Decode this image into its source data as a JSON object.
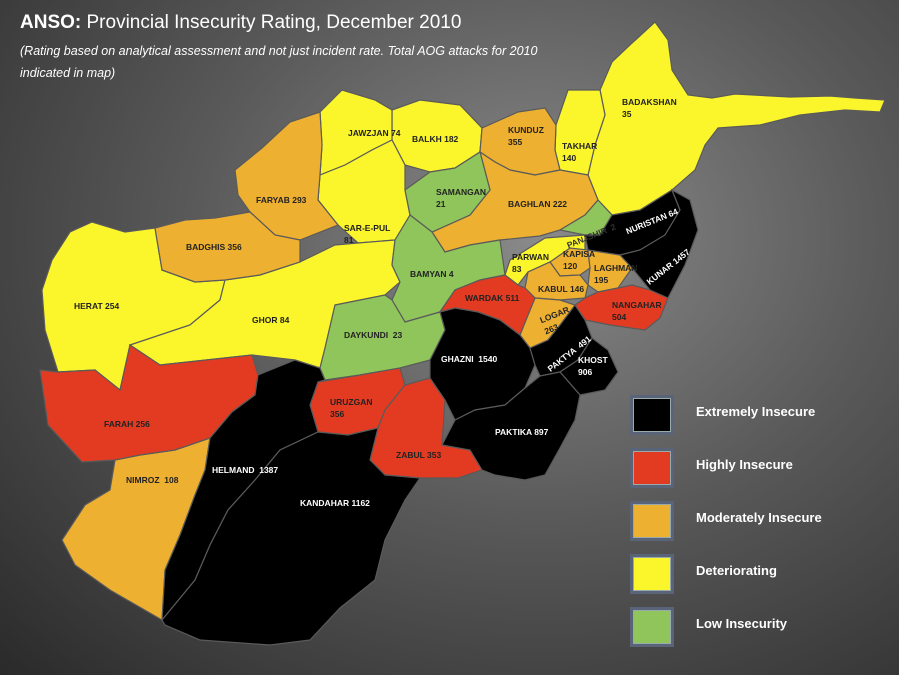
{
  "title_bold": "ANSO:",
  "title_rest": " Provincial Insecurity Rating, December 2010",
  "subtitle": "(Rating based on analytical assessment and not just incident rate. Total AOG attacks for 2010 indicated in map)",
  "colors": {
    "extremely": "#000000",
    "highly": "#e33b22",
    "moderately": "#eeb030",
    "deteriorating": "#fbf62c",
    "low": "#8fc55a"
  },
  "provinces": {
    "badakshan": "BADAKSHAN\n35",
    "takhar": "TAKHAR\n140",
    "kunduz": "KUNDUZ\n355",
    "balkh": "BALKH 182",
    "jawzjan": "JAWZJAN 74",
    "samangan": "SAMANGAN\n21",
    "faryab": "FARYAB 293",
    "sarepul": "SAR-E-PUL\n81",
    "baghlan": "BAGHLAN 222",
    "panjshir": "PANJSHIR  2",
    "nuristan": "NURISTAN 64",
    "kunar": "KUNAR 1457",
    "badghis": "BADGHIS 356",
    "parwan": "PARWAN\n83",
    "kapisa": "KAPISA\n120",
    "laghman": "LAGHMAN\n195",
    "bamyan": "BAMYAN 4",
    "kabul": "KABUL 146",
    "herat": "HERAT 254",
    "wardak": "WARDAK 511",
    "nangahar": "NANGAHAR\n504",
    "ghor": "GHOR 84",
    "daykundi": "DAYKUNDI  23",
    "logar": "LOGAR\n263",
    "ghazni": "GHAZNI  1540",
    "paktya": "PAKTYA  491",
    "khost": "KHOST\n906",
    "farah": "FARAH 256",
    "uruzgan": "URUZGAN\n356",
    "paktika": "PAKTIKA 897",
    "zabul": "ZABUL 353",
    "nimroz": "NIMROZ  108",
    "helmand": "HELMAND  1387",
    "kandahar": "KANDAHAR 1162"
  },
  "legend": [
    {
      "label": "Extremely Insecure",
      "color": "#000000"
    },
    {
      "label": "Highly Insecure",
      "color": "#e33b22"
    },
    {
      "label": "Moderately Insecure",
      "color": "#eeb030"
    },
    {
      "label": "Deteriorating",
      "color": "#fbf62c"
    },
    {
      "label": "Low Insecurity",
      "color": "#8fc55a"
    }
  ]
}
